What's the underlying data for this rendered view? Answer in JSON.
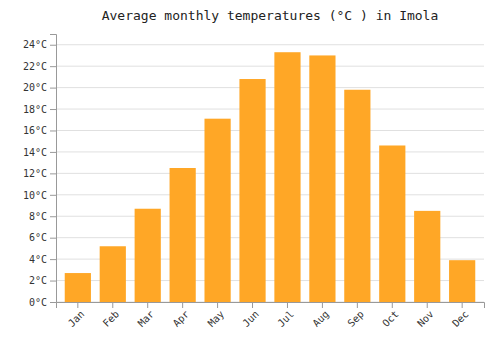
{
  "chart_data": {
    "type": "bar",
    "title": "Average monthly temperatures (°C ) in Imola",
    "categories": [
      "Jan",
      "Feb",
      "Mar",
      "Apr",
      "May",
      "Jun",
      "Jul",
      "Aug",
      "Sep",
      "Oct",
      "Nov",
      "Dec"
    ],
    "values": [
      2.7,
      5.2,
      8.7,
      12.5,
      17.1,
      20.8,
      23.3,
      23.0,
      19.8,
      14.6,
      8.5,
      3.9
    ],
    "color": "#FFA726",
    "ylim": [
      0,
      25
    ],
    "yticks": [
      {
        "value": 0,
        "label": "0°C"
      },
      {
        "value": 2,
        "label": "2°C"
      },
      {
        "value": 4,
        "label": "4°C"
      },
      {
        "value": 6,
        "label": "6°C"
      },
      {
        "value": 8,
        "label": "8°C"
      },
      {
        "value": 10,
        "label": "10°C"
      },
      {
        "value": 12,
        "label": "12°C"
      },
      {
        "value": 14,
        "label": "14°C"
      },
      {
        "value": 16,
        "label": "16°C"
      },
      {
        "value": 18,
        "label": "18°C"
      },
      {
        "value": 20,
        "label": "20°C"
      },
      {
        "value": 22,
        "label": "22°C"
      },
      {
        "value": 24,
        "label": "24°C"
      }
    ],
    "grid": true
  }
}
